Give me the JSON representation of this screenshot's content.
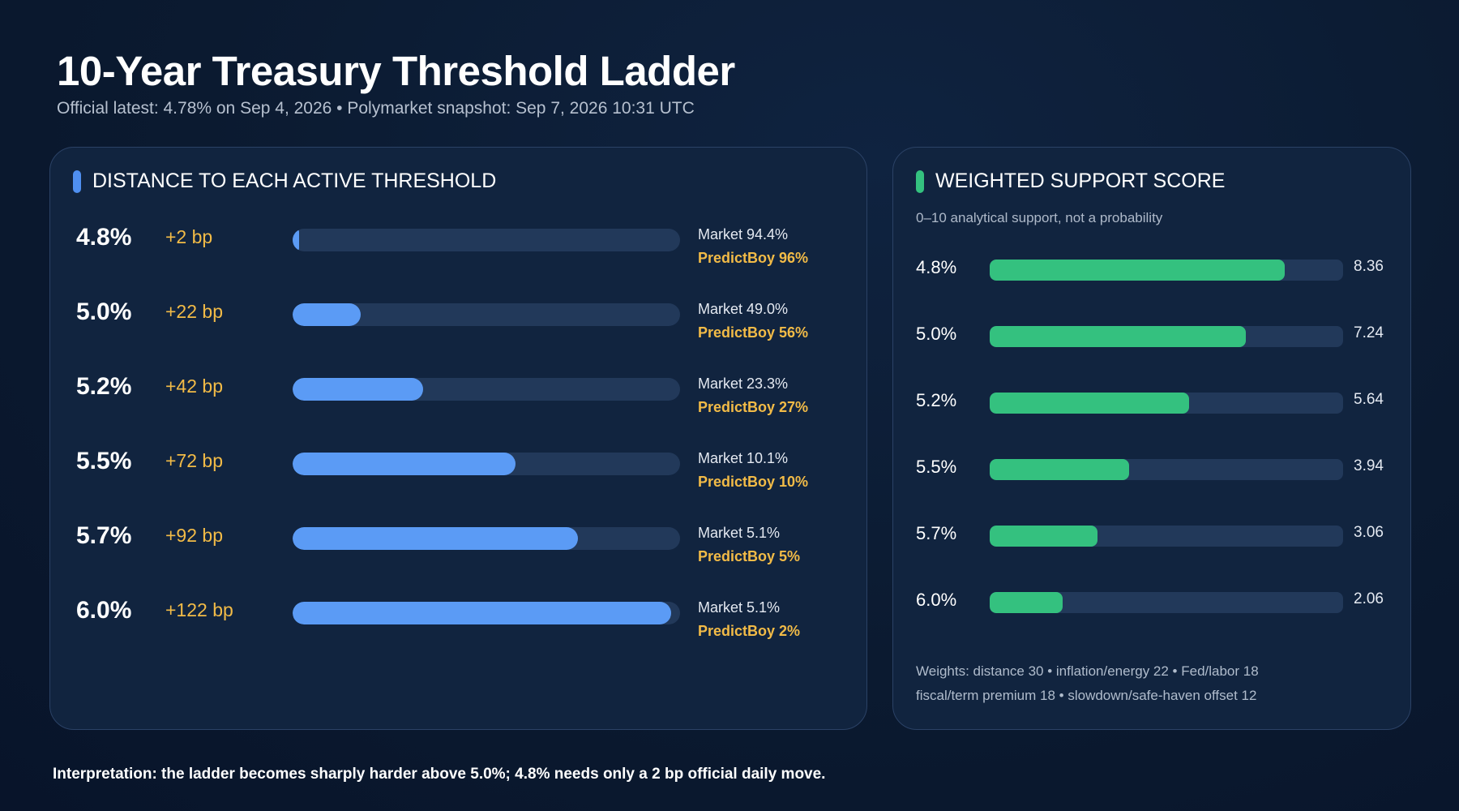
{
  "header": {
    "title": "10-Year Treasury Threshold Ladder",
    "subtitle": "Official latest: 4.78% on Sep 4, 2026 • Polymarket snapshot: Sep 7, 2026 10:31 UTC"
  },
  "colors": {
    "background": "#0b1a30",
    "panel": "#11243f",
    "blue_accent": "#4f8ff0",
    "blue_bar": "#5b9bf5",
    "green_accent": "#34c17f",
    "green_bar": "#34c17f",
    "track": "#22395a",
    "gold": "#f2bb47"
  },
  "chart_data": [
    {
      "type": "bar",
      "orientation": "horizontal",
      "title": "DISTANCE TO EACH ACTIVE THRESHOLD",
      "categories": [
        "4.8%",
        "5.0%",
        "5.2%",
        "5.5%",
        "5.7%",
        "6.0%"
      ],
      "values": [
        2,
        22,
        42,
        72,
        92,
        122
      ],
      "value_labels": [
        "+2 bp",
        "+22 bp",
        "+42 bp",
        "+72 bp",
        "+92 bp",
        "+122 bp"
      ],
      "xlim": [
        0,
        125
      ],
      "market": [
        "Market 94.4%",
        "Market 49.0%",
        "Market 23.3%",
        "Market 10.1%",
        "Market 5.1%",
        "Market 5.1%"
      ],
      "predictboy": [
        "PredictBoy 96%",
        "PredictBoy 56%",
        "PredictBoy 27%",
        "PredictBoy 10%",
        "PredictBoy 5%",
        "PredictBoy 2%"
      ]
    },
    {
      "type": "bar",
      "orientation": "horizontal",
      "title": "WEIGHTED SUPPORT SCORE",
      "subtitle": "0–10 analytical support, not a probability",
      "categories": [
        "4.8%",
        "5.0%",
        "5.2%",
        "5.5%",
        "5.7%",
        "6.0%"
      ],
      "values": [
        8.36,
        7.24,
        5.64,
        3.94,
        3.06,
        2.06
      ],
      "value_labels": [
        "8.36",
        "7.24",
        "5.64",
        "3.94",
        "3.06",
        "2.06"
      ],
      "xlim": [
        0,
        10
      ],
      "weights_line1": "Weights: distance 30 • inflation/energy 22 • Fed/labor 18",
      "weights_line2": "fiscal/term premium 18 • slowdown/safe-haven offset 12"
    }
  ],
  "footer": {
    "interpretation": "Interpretation: the ladder becomes sharply harder above 5.0%; 4.8% needs only a 2 bp official daily move."
  }
}
